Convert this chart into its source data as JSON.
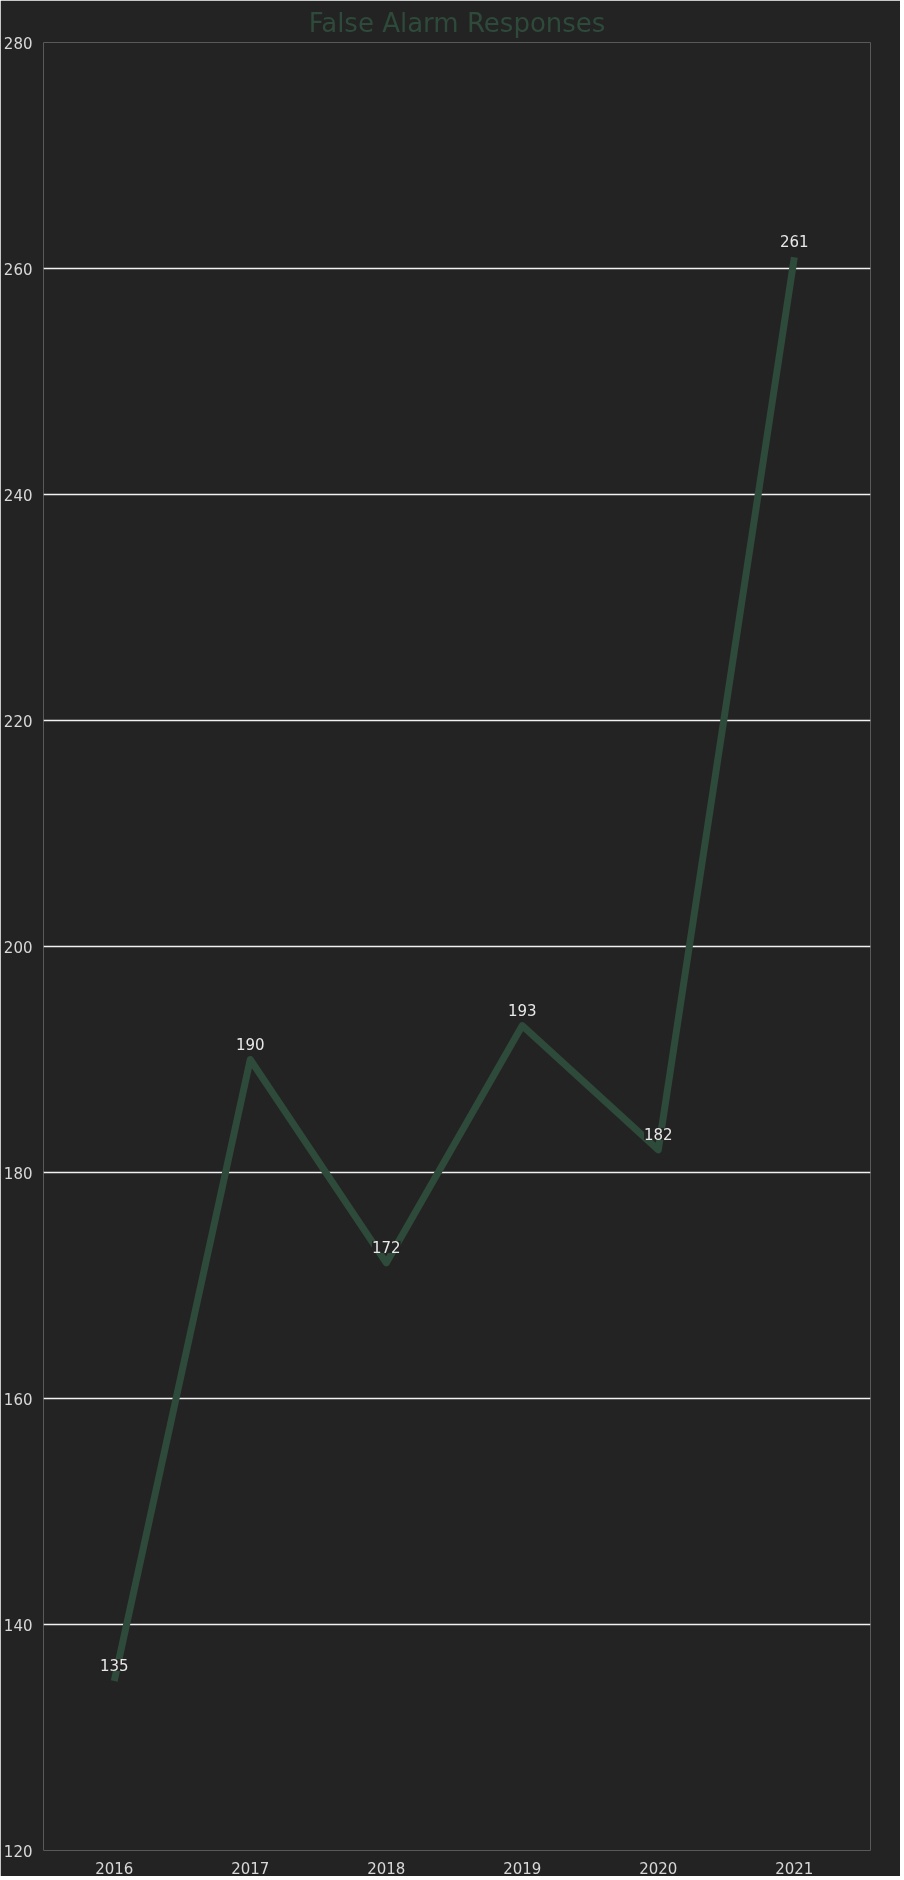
{
  "chart_data": {
    "type": "line",
    "title": "False Alarm Responses",
    "categories": [
      "2016",
      "2017",
      "2018",
      "2019",
      "2020",
      "2021"
    ],
    "series": [
      {
        "color": "#2e4a3a",
        "values": [
          135,
          190,
          172,
          193,
          182,
          261
        ]
      }
    ],
    "ylim": [
      120,
      280
    ],
    "yticks": [
      120,
      140,
      160,
      180,
      200,
      220,
      240,
      260,
      280
    ],
    "grid": "y",
    "data_labels": true
  }
}
